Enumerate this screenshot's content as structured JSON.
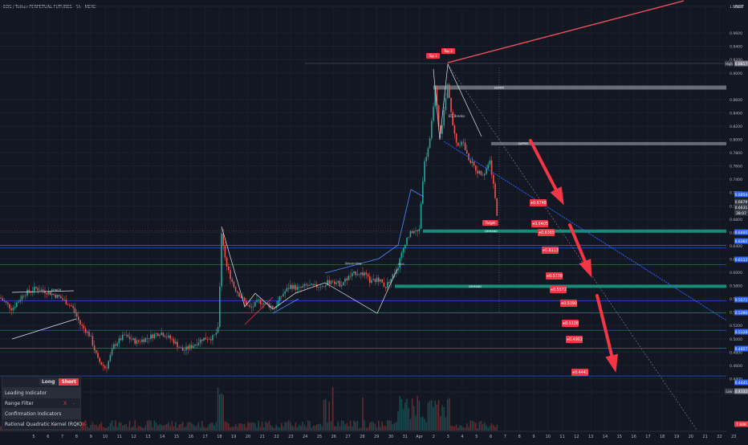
{
  "header": {
    "title": "EOS / Tether PERPETUAL FUTURES · 1h · MEXC"
  },
  "currency": "USDT",
  "chart_data": {
    "type": "candlestick",
    "title": "EOS / Tether PERPETUAL FUTURES · 1h · MEXC",
    "x_tick_labels": [
      "5",
      "6",
      "7",
      "8",
      "9",
      "10",
      "11",
      "12",
      "13",
      "14",
      "15",
      "16",
      "17",
      "18",
      "19",
      "20",
      "21",
      "22",
      "23",
      "24",
      "25",
      "26",
      "27",
      "28",
      "29",
      "30",
      "31",
      "Apr",
      "2",
      "3",
      "4",
      "5",
      "6",
      "7",
      "8",
      "9",
      "10",
      "11",
      "12",
      "13",
      "14",
      "15",
      "16",
      "17",
      "18",
      "19",
      "20",
      "21",
      "22",
      "23"
    ],
    "y_axis_labels": [
      "1.0000",
      "0.9600",
      "0.9400",
      "0.9200",
      "0.9000",
      "0.8600",
      "0.8400",
      "0.8200",
      "0.8000",
      "0.7800",
      "0.7600",
      "0.7400",
      "0.7200",
      "0.7000",
      "0.6800",
      "0.6600",
      "0.6400",
      "0.6200",
      "0.6000",
      "0.5800",
      "0.5600",
      "0.5400",
      "0.5200",
      "0.5000",
      "0.4800",
      "0.4600",
      "0.4400",
      "0.4200"
    ],
    "ylim": [
      0.4,
      1.015
    ],
    "price_tags": [
      {
        "text": "0.8817",
        "color": "#787b86",
        "prefix": "High"
      },
      {
        "text": "0.6854",
        "color": "#2962ff"
      },
      {
        "text": "0.6679",
        "color": "#363a45"
      },
      {
        "text": "0.6631",
        "color": "#363a45"
      },
      {
        "text": "38:07",
        "color": "#363a45"
      },
      {
        "text": "0.6405",
        "color": "#2962ff"
      },
      {
        "text": "0.6365",
        "color": "#2962ff"
      },
      {
        "text": "0.6113",
        "color": "#2962ff"
      },
      {
        "text": "0.5571",
        "color": "#2962ff"
      },
      {
        "text": "0.5390",
        "color": "#2962ff"
      },
      {
        "text": "0.5128",
        "color": "#2962ff"
      },
      {
        "text": "0.4857",
        "color": "#2962ff"
      },
      {
        "text": "0.4441",
        "color": "#2962ff"
      },
      {
        "text": "0.4332",
        "color": "#787b86",
        "prefix": "Low"
      },
      {
        "text": "7.60K",
        "color": "#f23645"
      }
    ],
    "target_labels": [
      "0.6748",
      "0.6405",
      "0.6365",
      "0.6113",
      "0.5778",
      "0.5572",
      "0.5390",
      "0.5128",
      "0.4902",
      "0.4441"
    ],
    "pattern_labels": [
      "Top 1",
      "Top 2",
      "EQ Breaks",
      "Target",
      "SUPPLY",
      "SUPPLY",
      "DEMAND",
      "DEMAND",
      "Descending",
      "BOS",
      "CHoCH"
    ],
    "legend_header": [
      "Long",
      "Short"
    ],
    "legend_rows": [
      {
        "label": "Leading Indicator",
        "section": true
      },
      {
        "label": "Range Filter",
        "section": false,
        "x": "X",
        "d": "-"
      },
      {
        "label": "Confirmation Indicators",
        "section": true
      },
      {
        "label": "Rational Quadratic Kernel (RQK)",
        "section": false,
        "x": "X",
        "d": "-"
      }
    ]
  }
}
